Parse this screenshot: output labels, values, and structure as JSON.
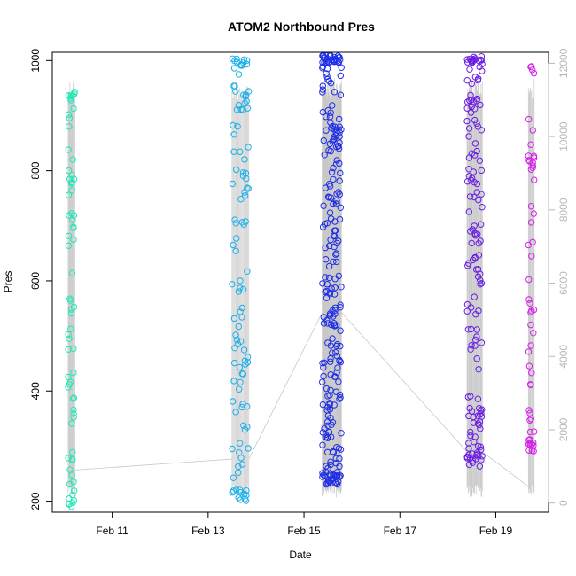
{
  "chart_data": {
    "type": "scatter",
    "title": "ATOM2 Northbound Pres",
    "xlabel": "Date",
    "ylabel": "Pres",
    "x_ticks": [
      "Feb 11",
      "Feb 13",
      "Feb 15",
      "Feb 17",
      "Feb 19"
    ],
    "x_tick_days": [
      11,
      13,
      15,
      17,
      19
    ],
    "xlim_days": [
      9.75,
      20.1
    ],
    "ylim": [
      180,
      1015
    ],
    "y_ticks": [
      200,
      400,
      600,
      800,
      1000
    ],
    "y2_ticks": [
      0,
      2000,
      4000,
      6000,
      8000,
      10000,
      12000
    ],
    "y2lim": [
      -250,
      12300
    ],
    "grid": false,
    "legend": "none",
    "secondary_series_color": "#c8c8c8",
    "casts": [
      {
        "day_start": 10.08,
        "day_end": 10.22,
        "pmin": 187,
        "pmax": 950,
        "color": "#1de9b6",
        "density": 70,
        "y2_level": 900
      },
      {
        "day_start": 13.5,
        "day_end": 13.85,
        "pmin": 195,
        "pmax": 1005,
        "color": "#1ab0ea",
        "density": 110,
        "y2_level": 1200
      },
      {
        "day_start": 15.38,
        "day_end": 15.78,
        "pmin": 230,
        "pmax": 1010,
        "color": "#1f2ee6",
        "density": 260,
        "y2_level": 5200
      },
      {
        "day_start": 18.4,
        "day_end": 18.72,
        "pmin": 262,
        "pmax": 1010,
        "color": "#6a1de3",
        "density": 150,
        "y2_level": 1400
      },
      {
        "day_start": 19.68,
        "day_end": 19.8,
        "pmin": 285,
        "pmax": 990,
        "color": "#d51fe8",
        "density": 55,
        "y2_level": 450
      }
    ]
  }
}
